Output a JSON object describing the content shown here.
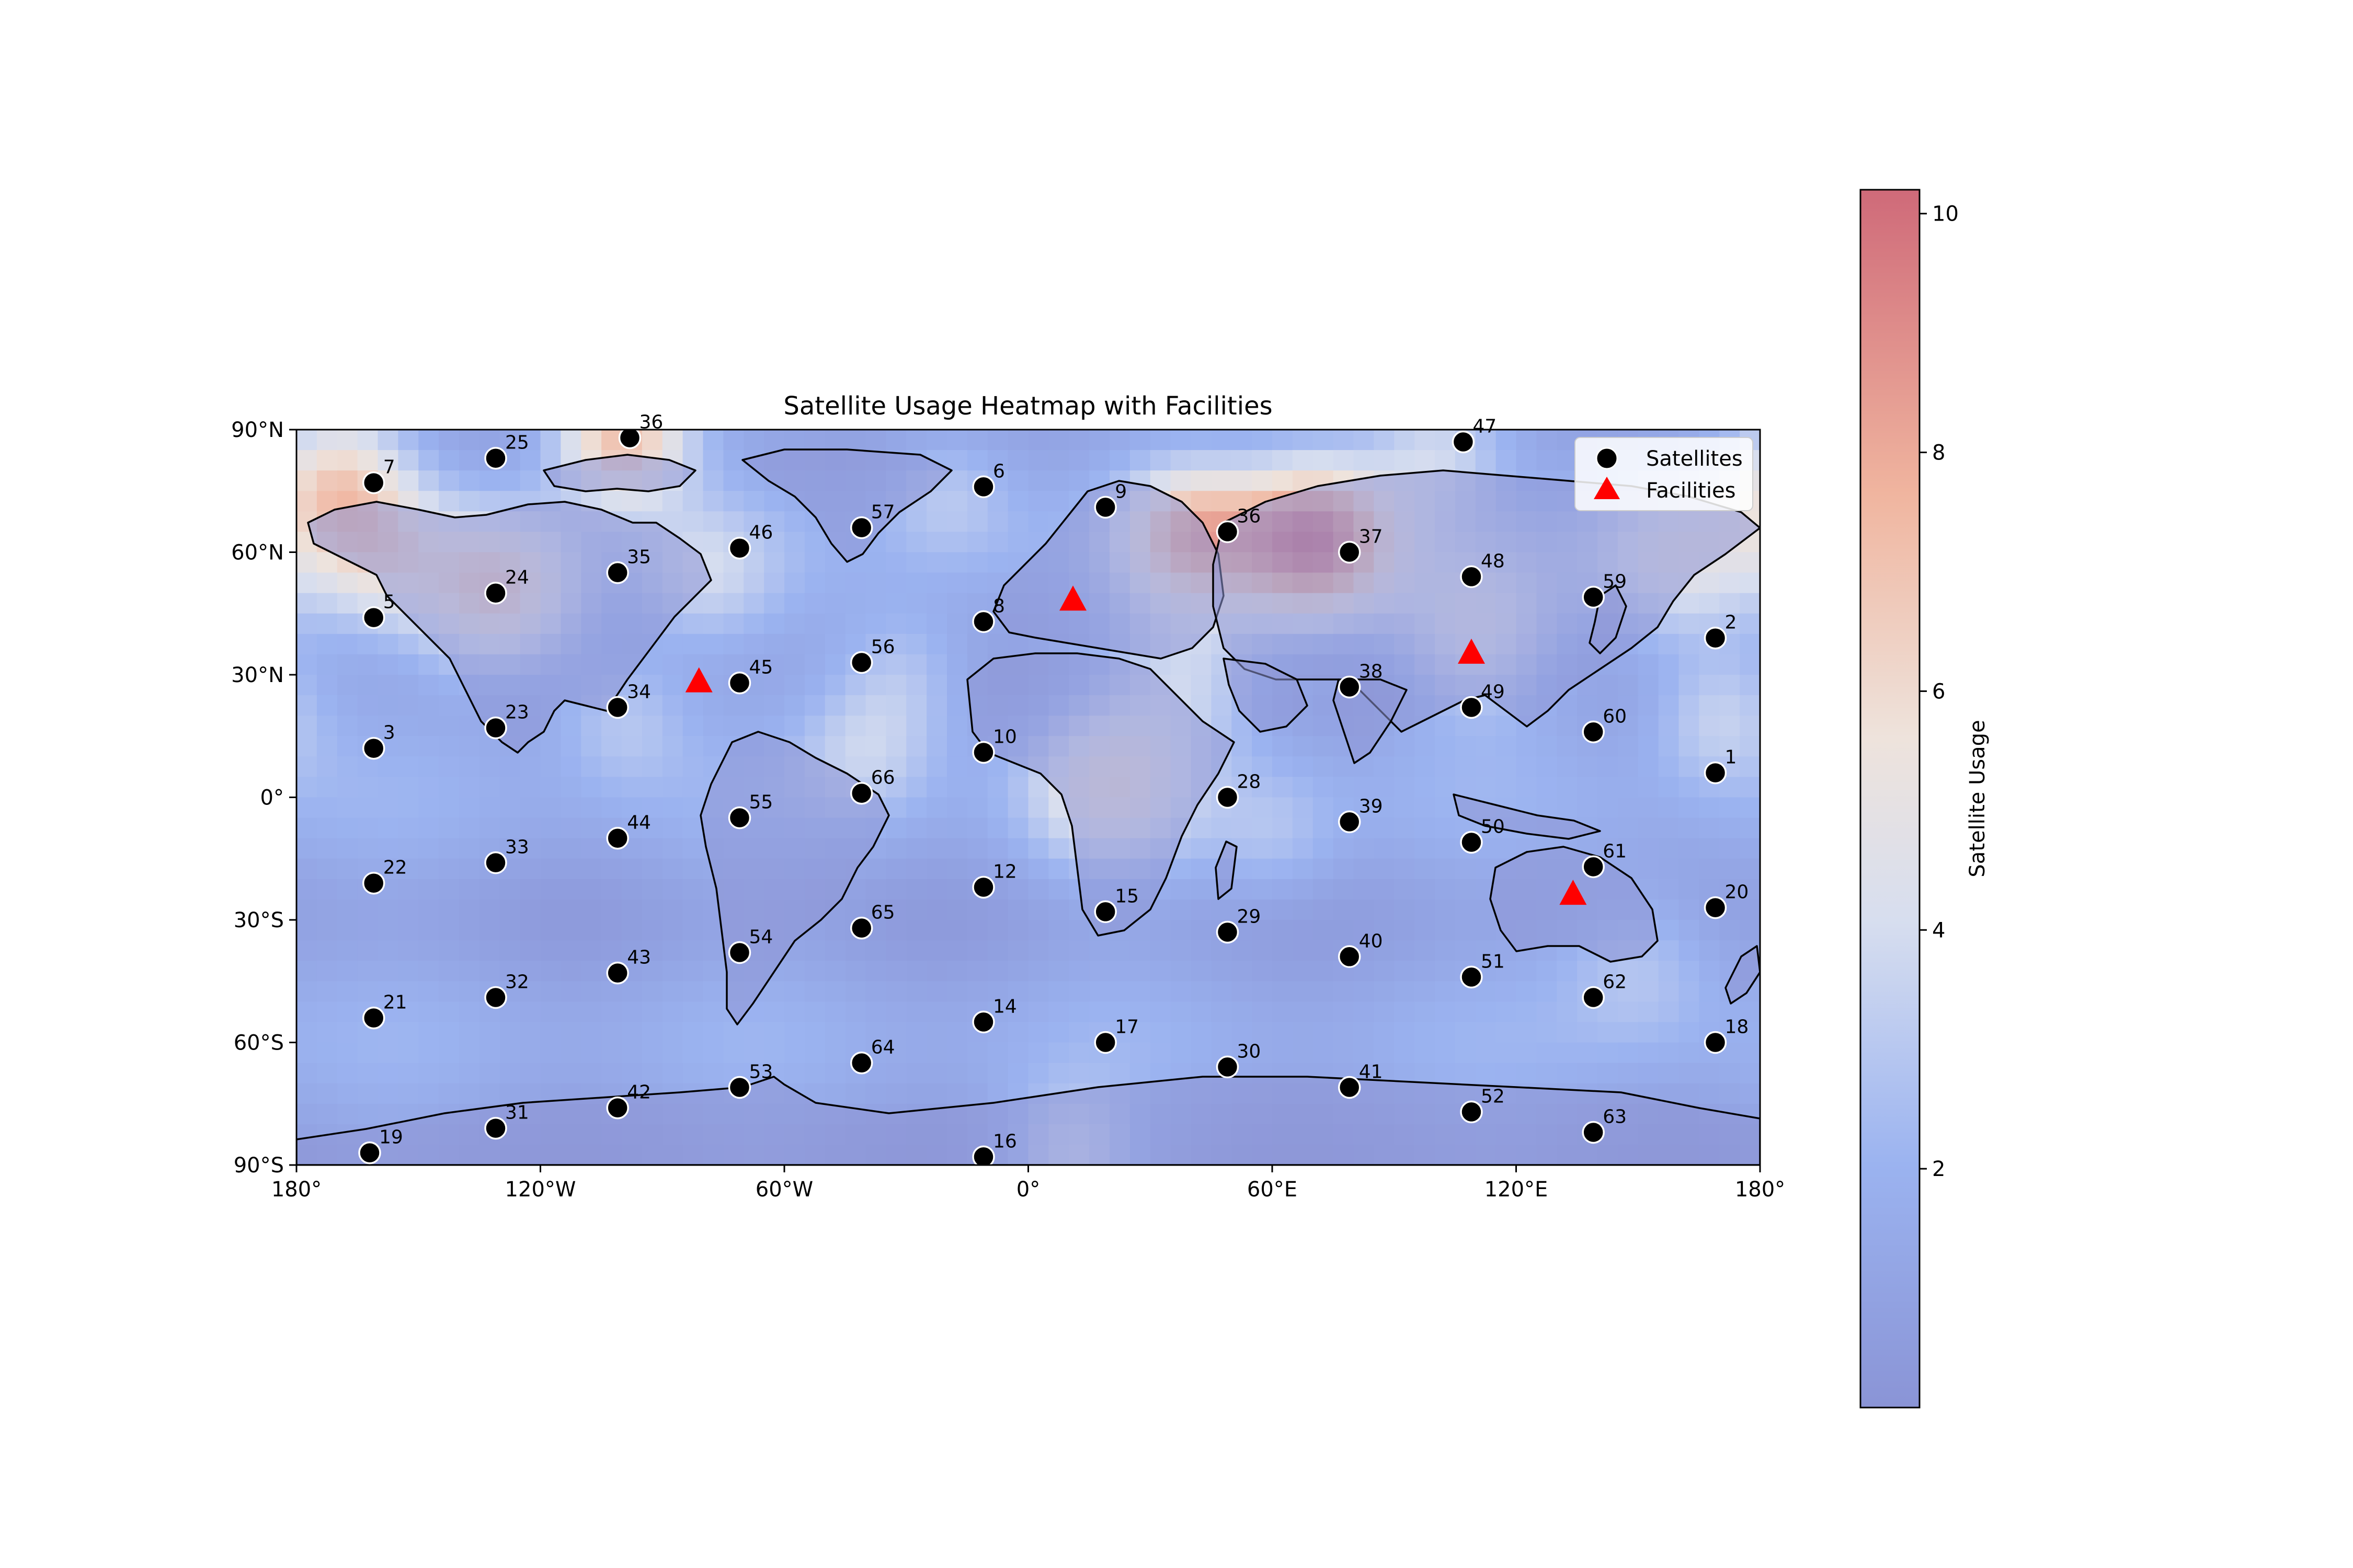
{
  "chart_data": {
    "type": "heatmap",
    "title": "Satellite Usage Heatmap with Facilities",
    "xlim": [
      -180,
      180
    ],
    "ylim": [
      -90,
      90
    ],
    "x_ticks": [
      {
        "value": -180,
        "label": "180°"
      },
      {
        "value": -120,
        "label": "120°W"
      },
      {
        "value": -60,
        "label": "60°W"
      },
      {
        "value": 0,
        "label": "0°"
      },
      {
        "value": 60,
        "label": "60°E"
      },
      {
        "value": 120,
        "label": "120°E"
      },
      {
        "value": 180,
        "label": "180°"
      }
    ],
    "y_ticks": [
      {
        "value": 90,
        "label": "90°N"
      },
      {
        "value": 60,
        "label": "60°N"
      },
      {
        "value": 30,
        "label": "30°N"
      },
      {
        "value": 0,
        "label": "0°"
      },
      {
        "value": -30,
        "label": "30°S"
      },
      {
        "value": -60,
        "label": "60°S"
      },
      {
        "value": -90,
        "label": "90°S"
      }
    ],
    "colorbar": {
      "label": "Satellite Usage",
      "range": [
        0,
        10.2
      ],
      "colormap": "coolwarm",
      "ticks": [
        {
          "value": 2,
          "label": "2"
        },
        {
          "value": 4,
          "label": "4"
        },
        {
          "value": 6,
          "label": "6"
        },
        {
          "value": 8,
          "label": "8"
        },
        {
          "value": 10,
          "label": "10"
        }
      ]
    },
    "legend": {
      "placement": "top-right",
      "entries": [
        {
          "label": "Satellites",
          "marker": "circle",
          "color": "#000000"
        },
        {
          "label": "Facilities",
          "marker": "triangle",
          "color": "#ff0000"
        }
      ]
    },
    "heat_blobs": [
      {
        "lon": 70,
        "lat": 63,
        "value": 10,
        "spread": 14
      },
      {
        "lon": 40,
        "lat": 65,
        "value": 7,
        "spread": 12
      },
      {
        "lon": -100,
        "lat": 88,
        "value": 8,
        "spread": 12
      },
      {
        "lon": -170,
        "lat": 78,
        "value": 6,
        "spread": 12
      },
      {
        "lon": -130,
        "lat": 50,
        "value": 6.5,
        "spread": 14
      },
      {
        "lon": 20,
        "lat": 3,
        "value": 5,
        "spread": 14
      },
      {
        "lon": 40,
        "lat": 30,
        "value": 4,
        "spread": 14
      },
      {
        "lon": 160,
        "lat": 60,
        "value": 5,
        "spread": 16
      },
      {
        "lon": -160,
        "lat": 60,
        "value": 4.5,
        "spread": 12
      },
      {
        "lon": 110,
        "lat": 40,
        "value": 4.5,
        "spread": 14
      },
      {
        "lon": 170,
        "lat": 20,
        "value": 4,
        "spread": 12
      },
      {
        "lon": -30,
        "lat": 30,
        "value": 3.5,
        "spread": 12
      },
      {
        "lon": -20,
        "lat": 75,
        "value": 3.5,
        "spread": 12
      },
      {
        "lon": 100,
        "lat": 85,
        "value": 4,
        "spread": 12
      },
      {
        "lon": -40,
        "lat": 12,
        "value": 3.5,
        "spread": 12
      },
      {
        "lon": -80,
        "lat": 55,
        "value": 3.5,
        "spread": 12
      },
      {
        "lon": 10,
        "lat": -88,
        "value": 4,
        "spread": 12
      },
      {
        "lon": 150,
        "lat": -40,
        "value": 3.5,
        "spread": 14
      },
      {
        "lon": -100,
        "lat": 20,
        "value": 3.5,
        "spread": 12
      },
      {
        "lon": 60,
        "lat": -10,
        "value": 3,
        "spread": 12
      }
    ],
    "satellites": [
      {
        "id": "1",
        "lon": 169,
        "lat": 6
      },
      {
        "id": "2",
        "lon": 169,
        "lat": 39
      },
      {
        "id": "3",
        "lon": -161,
        "lat": 12
      },
      {
        "id": "5",
        "lon": -161,
        "lat": 44
      },
      {
        "id": "6",
        "lon": -11,
        "lat": 76
      },
      {
        "id": "7",
        "lon": -161,
        "lat": 77
      },
      {
        "id": "8",
        "lon": -11,
        "lat": 43
      },
      {
        "id": "9",
        "lon": 19,
        "lat": 71
      },
      {
        "id": "10",
        "lon": -11,
        "lat": 11
      },
      {
        "id": "12",
        "lon": -11,
        "lat": -22
      },
      {
        "id": "14",
        "lon": -11,
        "lat": -55
      },
      {
        "id": "15",
        "lon": 19,
        "lat": -28
      },
      {
        "id": "16",
        "lon": -11,
        "lat": -88
      },
      {
        "id": "17",
        "lon": 19,
        "lat": -60
      },
      {
        "id": "18",
        "lon": 169,
        "lat": -60
      },
      {
        "id": "19",
        "lon": -162,
        "lat": -87
      },
      {
        "id": "20",
        "lon": 169,
        "lat": -27
      },
      {
        "id": "21",
        "lon": -161,
        "lat": -54
      },
      {
        "id": "22",
        "lon": -161,
        "lat": -21
      },
      {
        "id": "23",
        "lon": -131,
        "lat": 17
      },
      {
        "id": "24",
        "lon": -131,
        "lat": 50
      },
      {
        "id": "25",
        "lon": -131,
        "lat": 83
      },
      {
        "id": "28",
        "lon": 49,
        "lat": 0
      },
      {
        "id": "29",
        "lon": 49,
        "lat": -33
      },
      {
        "id": "30",
        "lon": 49,
        "lat": -66
      },
      {
        "id": "31",
        "lon": -131,
        "lat": -81
      },
      {
        "id": "32",
        "lon": -131,
        "lat": -49
      },
      {
        "id": "33",
        "lon": -131,
        "lat": -16
      },
      {
        "id": "34",
        "lon": -101,
        "lat": 22
      },
      {
        "id": "35",
        "lon": -101,
        "lat": 55
      },
      {
        "id": "36",
        "lon": -98,
        "lat": 88
      },
      {
        "id": "36",
        "lon": 49,
        "lat": 65
      },
      {
        "id": "37",
        "lon": 79,
        "lat": 60
      },
      {
        "id": "38",
        "lon": 79,
        "lat": 27
      },
      {
        "id": "39",
        "lon": 79,
        "lat": -6
      },
      {
        "id": "40",
        "lon": 79,
        "lat": -39
      },
      {
        "id": "41",
        "lon": 79,
        "lat": -71
      },
      {
        "id": "42",
        "lon": -101,
        "lat": -76
      },
      {
        "id": "43",
        "lon": -101,
        "lat": -43
      },
      {
        "id": "44",
        "lon": -101,
        "lat": -10
      },
      {
        "id": "45",
        "lon": -71,
        "lat": 28
      },
      {
        "id": "46",
        "lon": -71,
        "lat": 61
      },
      {
        "id": "47",
        "lon": 107,
        "lat": 87
      },
      {
        "id": "48",
        "lon": 109,
        "lat": 54
      },
      {
        "id": "49",
        "lon": 109,
        "lat": 22
      },
      {
        "id": "50",
        "lon": 109,
        "lat": -11
      },
      {
        "id": "51",
        "lon": 109,
        "lat": -44
      },
      {
        "id": "52",
        "lon": 109,
        "lat": -77
      },
      {
        "id": "53",
        "lon": -71,
        "lat": -71
      },
      {
        "id": "54",
        "lon": -71,
        "lat": -38
      },
      {
        "id": "55",
        "lon": -71,
        "lat": -5
      },
      {
        "id": "56",
        "lon": -41,
        "lat": 33
      },
      {
        "id": "57",
        "lon": -41,
        "lat": 66
      },
      {
        "id": "59",
        "lon": 139,
        "lat": 49
      },
      {
        "id": "60",
        "lon": 139,
        "lat": 16
      },
      {
        "id": "61",
        "lon": 139,
        "lat": -17
      },
      {
        "id": "62",
        "lon": 139,
        "lat": -49
      },
      {
        "id": "63",
        "lon": 139,
        "lat": -82
      },
      {
        "id": "64",
        "lon": -41,
        "lat": -65
      },
      {
        "id": "65",
        "lon": -41,
        "lat": -32
      },
      {
        "id": "66",
        "lon": -41,
        "lat": 1
      }
    ],
    "facilities": [
      {
        "lon": -81,
        "lat": 28
      },
      {
        "lon": 11,
        "lat": 48
      },
      {
        "lon": 109,
        "lat": 35
      },
      {
        "lon": 134,
        "lat": -24
      }
    ]
  }
}
